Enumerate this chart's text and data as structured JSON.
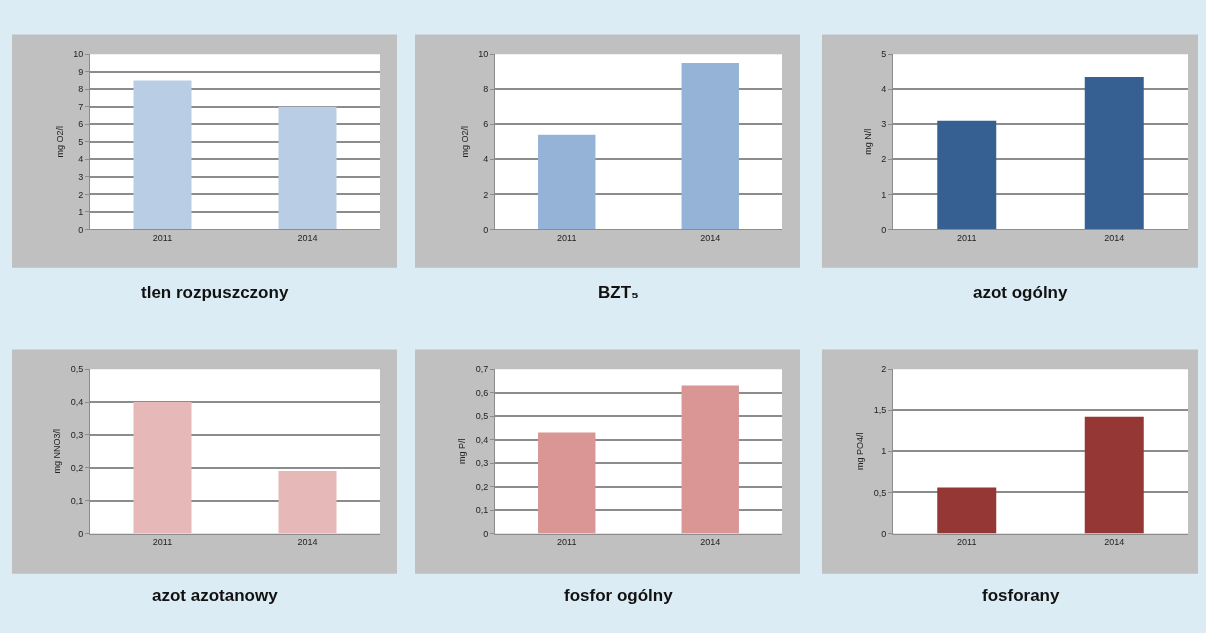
{
  "chart_data": [
    {
      "type": "bar",
      "title": "tlen rozpuszczony",
      "ylabel": "mg O2/l",
      "categories": [
        "2011",
        "2014"
      ],
      "values": [
        8.5,
        7.0
      ],
      "color": "#b9cde5",
      "ylim": [
        0,
        10
      ],
      "yticks": [
        0,
        1,
        2,
        3,
        4,
        5,
        6,
        7,
        8,
        9,
        10
      ],
      "grid": "y"
    },
    {
      "type": "bar",
      "title": "BZT₅",
      "ylabel": "mg O2/l",
      "categories": [
        "2011",
        "2014"
      ],
      "values": [
        5.4,
        9.5
      ],
      "color": "#95b3d7",
      "ylim": [
        0,
        10
      ],
      "yticks": [
        0,
        2,
        4,
        6,
        8,
        10
      ],
      "grid": "y"
    },
    {
      "type": "bar",
      "title": "azot ogólny",
      "ylabel": "mg N/l",
      "categories": [
        "2011",
        "2014"
      ],
      "values": [
        3.1,
        4.35
      ],
      "color": "#366092",
      "ylim": [
        0,
        5
      ],
      "yticks": [
        0,
        1,
        2,
        3,
        4,
        5
      ],
      "grid": "y"
    },
    {
      "type": "bar",
      "title": "azot azotanowy",
      "ylabel": "mg NNO3/l",
      "categories": [
        "2011",
        "2014"
      ],
      "values": [
        0.4,
        0.19
      ],
      "color": "#e6b9b8",
      "ylim": [
        0,
        0.5
      ],
      "yticks": [
        0,
        {
          "value": 0.1,
          "label": "0,1"
        },
        {
          "value": 0.2,
          "label": "0,2"
        },
        {
          "value": 0.3,
          "label": "0,3"
        },
        {
          "value": 0.4,
          "label": "0,4"
        },
        {
          "value": 0.5,
          "label": "0,5"
        }
      ],
      "grid": "y"
    },
    {
      "type": "bar",
      "title": "fosfor ogólny",
      "ylabel": "mg P/l",
      "categories": [
        "2011",
        "2014"
      ],
      "values": [
        0.43,
        0.63
      ],
      "color": "#d99694",
      "ylim": [
        0,
        0.7
      ],
      "yticks": [
        0,
        {
          "value": 0.1,
          "label": "0,1"
        },
        {
          "value": 0.2,
          "label": "0,2"
        },
        {
          "value": 0.3,
          "label": "0,3"
        },
        {
          "value": 0.4,
          "label": "0,4"
        },
        {
          "value": 0.5,
          "label": "0,5"
        },
        {
          "value": 0.6,
          "label": "0,6"
        },
        {
          "value": 0.7,
          "label": "0,7"
        }
      ],
      "grid": "y"
    },
    {
      "type": "bar",
      "title": "fosforany",
      "ylabel": "mg PO4/l",
      "categories": [
        "2011",
        "2014"
      ],
      "values": [
        0.56,
        1.42
      ],
      "color": "#953735",
      "ylim": [
        0,
        2
      ],
      "yticks": [
        0,
        {
          "value": 0.5,
          "label": "0,5"
        },
        1,
        {
          "value": 1.5,
          "label": "1,5"
        },
        2
      ],
      "grid": "y"
    }
  ]
}
